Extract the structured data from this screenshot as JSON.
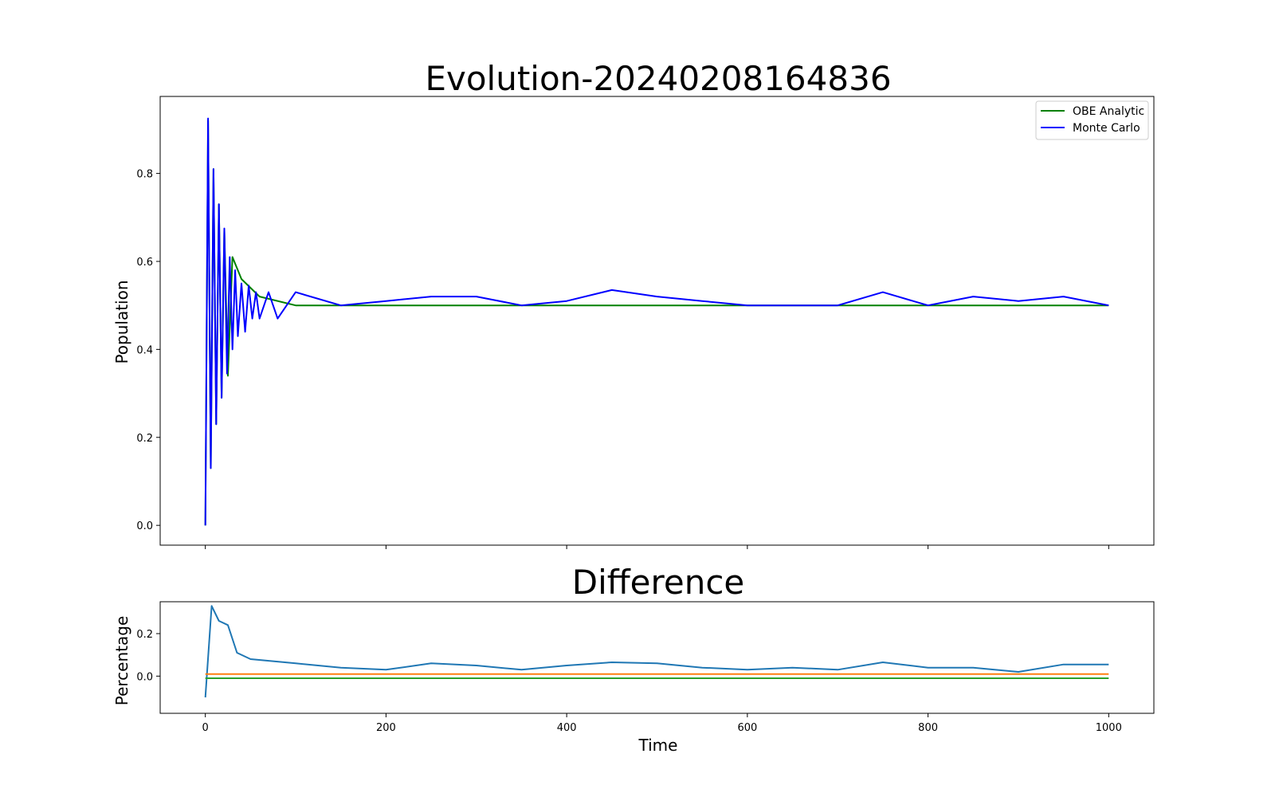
{
  "chart_data": [
    {
      "type": "line",
      "title": "Evolution-20240208164836",
      "xlabel": "",
      "ylabel": "Population",
      "xlim": [
        -50,
        1050
      ],
      "ylim": [
        -0.045,
        0.975
      ],
      "xticks": [
        0,
        200,
        400,
        600,
        800,
        1000
      ],
      "yticks": [
        0.0,
        0.2,
        0.4,
        0.6,
        0.8
      ],
      "ytick_labels": [
        "0.0",
        "0.2",
        "0.4",
        "0.6",
        "0.8"
      ],
      "grid": false,
      "legend": {
        "placement": "top-right",
        "entries": [
          "OBE Analytic",
          "Monte Carlo"
        ]
      },
      "series": [
        {
          "name": "OBE Analytic",
          "color": "#008000",
          "x": [
            0,
            3,
            6,
            9,
            12,
            15,
            18,
            21,
            25,
            30,
            40,
            60,
            100,
            1000
          ],
          "values": [
            0.0,
            0.92,
            0.13,
            0.81,
            0.23,
            0.73,
            0.29,
            0.67,
            0.34,
            0.61,
            0.56,
            0.52,
            0.5,
            0.5
          ]
        },
        {
          "name": "Monte Carlo",
          "color": "#0000ff",
          "x": [
            0,
            3,
            6,
            9,
            12,
            15,
            18,
            21,
            24,
            27,
            30,
            33,
            36,
            40,
            44,
            48,
            52,
            56,
            60,
            70,
            80,
            100,
            150,
            200,
            250,
            300,
            350,
            400,
            450,
            500,
            550,
            600,
            650,
            700,
            750,
            800,
            850,
            900,
            950,
            1000
          ],
          "values": [
            0.0,
            0.925,
            0.13,
            0.81,
            0.23,
            0.73,
            0.29,
            0.675,
            0.345,
            0.61,
            0.4,
            0.58,
            0.43,
            0.55,
            0.44,
            0.545,
            0.47,
            0.53,
            0.47,
            0.53,
            0.47,
            0.53,
            0.5,
            0.51,
            0.52,
            0.52,
            0.5,
            0.51,
            0.535,
            0.52,
            0.51,
            0.5,
            0.5,
            0.5,
            0.53,
            0.5,
            0.52,
            0.51,
            0.52,
            0.5
          ]
        }
      ]
    },
    {
      "type": "line",
      "title": "Difference",
      "xlabel": "Time",
      "ylabel": "Percentage",
      "xlim": [
        -50,
        1050
      ],
      "ylim": [
        -0.175,
        0.35
      ],
      "xticks": [
        0,
        200,
        400,
        600,
        800,
        1000
      ],
      "xtick_labels": [
        "0",
        "200",
        "400",
        "600",
        "800",
        "1000"
      ],
      "yticks": [
        0.0,
        0.2
      ],
      "ytick_labels": [
        "0.0",
        "0.2"
      ],
      "grid": false,
      "series": [
        {
          "color": "#1f77b4",
          "x": [
            0,
            7,
            15,
            25,
            35,
            50,
            100,
            150,
            200,
            250,
            300,
            350,
            400,
            450,
            500,
            550,
            600,
            650,
            700,
            750,
            800,
            850,
            900,
            950,
            1000
          ],
          "values": [
            -0.1,
            0.33,
            0.26,
            0.24,
            0.11,
            0.08,
            0.06,
            0.04,
            0.03,
            0.06,
            0.05,
            0.03,
            0.05,
            0.065,
            0.06,
            0.04,
            0.03,
            0.04,
            0.03,
            0.065,
            0.04,
            0.04,
            0.02,
            0.055,
            0.055
          ]
        },
        {
          "color": "#ff7f0e",
          "x": [
            0,
            1000
          ],
          "values": [
            0.01,
            0.01
          ]
        },
        {
          "color": "#2ca02c",
          "x": [
            0,
            1000
          ],
          "values": [
            -0.01,
            -0.01
          ]
        }
      ]
    }
  ]
}
